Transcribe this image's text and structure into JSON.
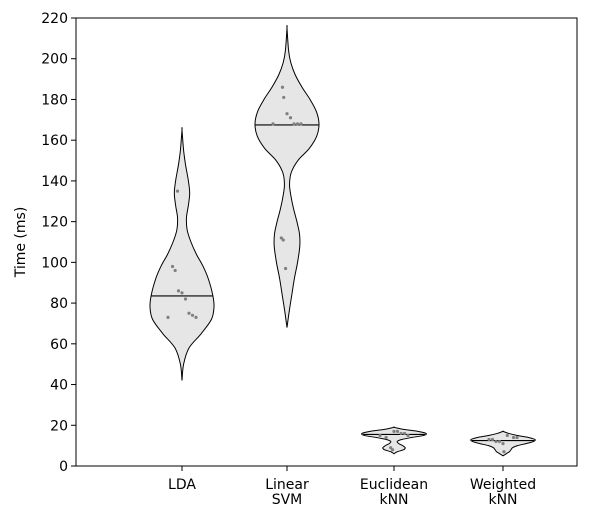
{
  "chart_data": {
    "type": "violin",
    "title": "",
    "xlabel": "",
    "ylabel": "Time (ms)",
    "ylim": [
      0,
      220
    ],
    "y_ticks": [
      0,
      20,
      40,
      60,
      80,
      100,
      120,
      140,
      160,
      180,
      200,
      220
    ],
    "grid": false,
    "colors": {
      "fill": "#e6e6e6",
      "stroke": "#000000",
      "points": "#808080"
    },
    "categories": [
      {
        "label_lines": [
          "LDA"
        ]
      },
      {
        "label_lines": [
          "Linear",
          "SVM"
        ]
      },
      {
        "label_lines": [
          "Euclidean",
          "kNN"
        ]
      },
      {
        "label_lines": [
          "Weighted",
          "kNN"
        ]
      }
    ],
    "series": [
      {
        "median": 83.5,
        "range": [
          42,
          165
        ],
        "points": [
          135,
          98,
          96,
          86,
          85,
          82,
          75,
          74,
          73,
          73
        ],
        "density": [
          [
            42,
            0
          ],
          [
            50,
            0.05
          ],
          [
            58,
            0.22
          ],
          [
            65,
            0.6
          ],
          [
            72,
            0.92
          ],
          [
            78,
            1
          ],
          [
            84,
            0.96
          ],
          [
            92,
            0.82
          ],
          [
            98,
            0.66
          ],
          [
            104,
            0.45
          ],
          [
            110,
            0.28
          ],
          [
            116,
            0.16
          ],
          [
            122,
            0.14
          ],
          [
            128,
            0.2
          ],
          [
            134,
            0.24
          ],
          [
            140,
            0.2
          ],
          [
            148,
            0.11
          ],
          [
            155,
            0.05
          ],
          [
            165,
            0
          ]
        ]
      },
      {
        "median": 167.5,
        "range": [
          68,
          215
        ],
        "points": [
          186,
          181,
          173,
          171,
          168,
          168,
          168,
          168,
          112,
          111,
          97
        ],
        "density": [
          [
            68,
            0
          ],
          [
            76,
            0.07
          ],
          [
            84,
            0.15
          ],
          [
            92,
            0.23
          ],
          [
            100,
            0.33
          ],
          [
            108,
            0.4
          ],
          [
            114,
            0.39
          ],
          [
            120,
            0.31
          ],
          [
            126,
            0.21
          ],
          [
            132,
            0.13
          ],
          [
            138,
            0.08
          ],
          [
            144,
            0.13
          ],
          [
            150,
            0.34
          ],
          [
            156,
            0.7
          ],
          [
            162,
            0.93
          ],
          [
            168,
            1
          ],
          [
            174,
            0.92
          ],
          [
            180,
            0.72
          ],
          [
            186,
            0.47
          ],
          [
            192,
            0.26
          ],
          [
            198,
            0.12
          ],
          [
            204,
            0.05
          ],
          [
            215,
            0
          ]
        ]
      },
      {
        "median": 15.5,
        "range": [
          6,
          19
        ],
        "points": [
          17,
          17,
          16,
          16,
          15,
          15,
          14,
          9,
          8
        ],
        "density": [
          [
            6,
            0
          ],
          [
            7,
            0.1
          ],
          [
            8,
            0.3
          ],
          [
            9,
            0.35
          ],
          [
            10,
            0.27
          ],
          [
            11,
            0.15
          ],
          [
            12,
            0.1
          ],
          [
            13,
            0.24
          ],
          [
            14,
            0.55
          ],
          [
            15,
            0.93
          ],
          [
            16,
            1
          ],
          [
            17,
            0.75
          ],
          [
            18,
            0.3
          ],
          [
            19,
            0
          ]
        ]
      },
      {
        "median": 12.5,
        "range": [
          5,
          17
        ],
        "points": [
          15,
          14,
          14,
          13,
          13,
          12,
          12,
          11,
          7
        ],
        "density": [
          [
            5,
            0
          ],
          [
            6,
            0.1
          ],
          [
            7,
            0.2
          ],
          [
            8,
            0.25
          ],
          [
            9,
            0.3
          ],
          [
            10,
            0.45
          ],
          [
            11,
            0.72
          ],
          [
            12,
            0.95
          ],
          [
            13,
            1
          ],
          [
            14,
            0.8
          ],
          [
            15,
            0.45
          ],
          [
            16,
            0.18
          ],
          [
            17,
            0
          ]
        ]
      }
    ]
  }
}
